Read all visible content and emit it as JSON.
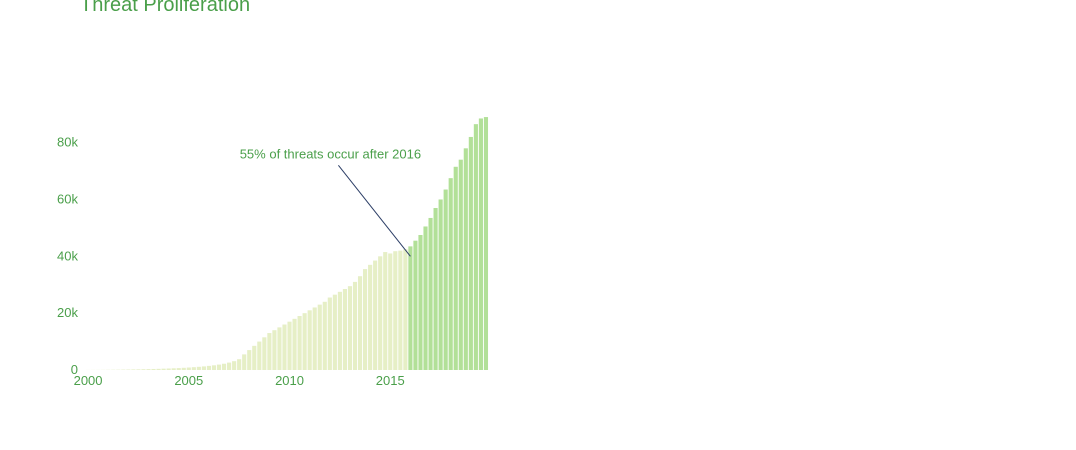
{
  "chart_data": {
    "type": "bar",
    "title": "Threat Proliferation",
    "xlabel": "",
    "ylabel": "",
    "xlim": [
      1999.6,
      2020.05
    ],
    "ylim": [
      0,
      95000
    ],
    "x_ticks": [
      {
        "value": 2000,
        "label": "2000"
      },
      {
        "value": 2005,
        "label": "2005"
      },
      {
        "value": 2010,
        "label": "2010"
      },
      {
        "value": 2015,
        "label": "2015"
      }
    ],
    "y_ticks": [
      {
        "value": 0,
        "label": "0"
      },
      {
        "value": 20000,
        "label": "20k"
      },
      {
        "value": 40000,
        "label": "40k"
      },
      {
        "value": 60000,
        "label": "60k"
      },
      {
        "value": 80000,
        "label": "80k"
      }
    ],
    "split_at": 2016,
    "colors": {
      "before": "#e6efc6",
      "after": "#b2e098",
      "text": "#4a9f4a",
      "annotation_line": "#2c3e66"
    },
    "annotation": {
      "text": "55% of threats occur after 2016",
      "x": 2016,
      "y": 40000
    },
    "x": [
      2000.0,
      2000.25,
      2000.5,
      2000.75,
      2001.0,
      2001.25,
      2001.5,
      2001.75,
      2002.0,
      2002.25,
      2002.5,
      2002.75,
      2003.0,
      2003.25,
      2003.5,
      2003.75,
      2004.0,
      2004.25,
      2004.5,
      2004.75,
      2005.0,
      2005.25,
      2005.5,
      2005.75,
      2006.0,
      2006.25,
      2006.5,
      2006.75,
      2007.0,
      2007.25,
      2007.5,
      2007.75,
      2008.0,
      2008.25,
      2008.5,
      2008.75,
      2009.0,
      2009.25,
      2009.5,
      2009.75,
      2010.0,
      2010.25,
      2010.5,
      2010.75,
      2011.0,
      2011.25,
      2011.5,
      2011.75,
      2012.0,
      2012.25,
      2012.5,
      2012.75,
      2013.0,
      2013.25,
      2013.5,
      2013.75,
      2014.0,
      2014.25,
      2014.5,
      2014.75,
      2015.0,
      2015.25,
      2015.5,
      2015.75,
      2016.0,
      2016.25,
      2016.5,
      2016.75,
      2017.0,
      2017.25,
      2017.5,
      2017.75,
      2018.0,
      2018.25,
      2018.5,
      2018.75,
      2019.0,
      2019.25,
      2019.5,
      2019.75
    ],
    "values": [
      20,
      30,
      40,
      50,
      70,
      90,
      110,
      140,
      170,
      200,
      230,
      270,
      310,
      360,
      410,
      470,
      530,
      600,
      680,
      770,
      870,
      990,
      1120,
      1270,
      1450,
      1650,
      1900,
      2200,
      2600,
      3100,
      3800,
      5500,
      7000,
      8500,
      10000,
      11500,
      13000,
      14000,
      15000,
      16000,
      17000,
      18000,
      19000,
      20000,
      21000,
      22000,
      23000,
      24000,
      25500,
      26500,
      27500,
      28500,
      29500,
      31000,
      33000,
      35500,
      37000,
      38500,
      40000,
      41500,
      41000,
      41800,
      42000,
      42500,
      43500,
      45500,
      47500,
      50500,
      53500,
      57000,
      60000,
      63500,
      67500,
      71500,
      74000,
      78000,
      82000,
      86500,
      88500,
      89000
    ]
  }
}
